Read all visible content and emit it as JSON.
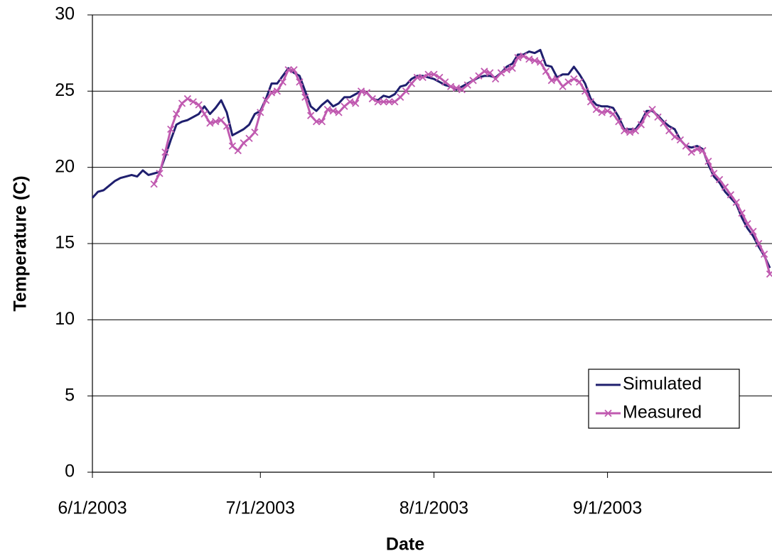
{
  "chart_data": {
    "type": "line",
    "x_label": "Date",
    "y_label": "Temperature (C)",
    "x": [
      "6/1/2003",
      "6/2/2003",
      "6/3/2003",
      "6/4/2003",
      "6/5/2003",
      "6/6/2003",
      "6/7/2003",
      "6/8/2003",
      "6/9/2003",
      "6/10/2003",
      "6/11/2003",
      "6/12/2003",
      "6/13/2003",
      "6/14/2003",
      "6/15/2003",
      "6/16/2003",
      "6/17/2003",
      "6/18/2003",
      "6/19/2003",
      "6/20/2003",
      "6/21/2003",
      "6/22/2003",
      "6/23/2003",
      "6/24/2003",
      "6/25/2003",
      "6/26/2003",
      "6/27/2003",
      "6/28/2003",
      "6/29/2003",
      "6/30/2003",
      "7/1/2003",
      "7/2/2003",
      "7/3/2003",
      "7/4/2003",
      "7/5/2003",
      "7/6/2003",
      "7/7/2003",
      "7/8/2003",
      "7/9/2003",
      "7/10/2003",
      "7/11/2003",
      "7/12/2003",
      "7/13/2003",
      "7/14/2003",
      "7/15/2003",
      "7/16/2003",
      "7/17/2003",
      "7/18/2003",
      "7/19/2003",
      "7/20/2003",
      "7/21/2003",
      "7/22/2003",
      "7/23/2003",
      "7/24/2003",
      "7/25/2003",
      "7/26/2003",
      "7/27/2003",
      "7/28/2003",
      "7/29/2003",
      "7/30/2003",
      "7/31/2003",
      "8/1/2003",
      "8/2/2003",
      "8/3/2003",
      "8/4/2003",
      "8/5/2003",
      "8/6/2003",
      "8/7/2003",
      "8/8/2003",
      "8/9/2003",
      "8/10/2003",
      "8/11/2003",
      "8/12/2003",
      "8/13/2003",
      "8/14/2003",
      "8/15/2003",
      "8/16/2003",
      "8/17/2003",
      "8/18/2003",
      "8/19/2003",
      "8/20/2003",
      "8/21/2003",
      "8/22/2003",
      "8/23/2003",
      "8/24/2003",
      "8/25/2003",
      "8/26/2003",
      "8/27/2003",
      "8/28/2003",
      "8/29/2003",
      "8/30/2003",
      "8/31/2003",
      "9/1/2003",
      "9/2/2003",
      "9/3/2003",
      "9/4/2003",
      "9/5/2003",
      "9/6/2003",
      "9/7/2003",
      "9/8/2003",
      "9/9/2003",
      "9/10/2003",
      "9/11/2003",
      "9/12/2003",
      "9/13/2003",
      "9/14/2003",
      "9/15/2003",
      "9/16/2003",
      "9/17/2003",
      "9/18/2003",
      "9/19/2003",
      "9/20/2003",
      "9/21/2003",
      "9/22/2003",
      "9/23/2003",
      "9/24/2003",
      "9/25/2003",
      "9/26/2003",
      "9/27/2003",
      "9/28/2003",
      "9/29/2003",
      "9/30/2003"
    ],
    "series": [
      {
        "name": "Simulated",
        "color": "#1f1f6e",
        "marker": "none",
        "values": [
          18.0,
          18.4,
          18.5,
          18.8,
          19.1,
          19.3,
          19.4,
          19.5,
          19.4,
          19.8,
          19.5,
          19.6,
          19.7,
          20.7,
          21.8,
          22.8,
          23.0,
          23.1,
          23.3,
          23.5,
          24.0,
          23.5,
          23.9,
          24.4,
          23.6,
          22.1,
          22.3,
          22.5,
          22.8,
          23.5,
          23.7,
          24.5,
          25.5,
          25.5,
          26.0,
          26.5,
          26.2,
          26.0,
          25.0,
          24.0,
          23.7,
          24.1,
          24.4,
          24.0,
          24.2,
          24.6,
          24.6,
          24.8,
          25.0,
          24.9,
          24.5,
          24.4,
          24.7,
          24.6,
          24.8,
          25.3,
          25.4,
          25.8,
          26.0,
          26.0,
          25.9,
          25.8,
          25.6,
          25.4,
          25.3,
          25.1,
          25.3,
          25.5,
          25.7,
          25.9,
          26.0,
          26.0,
          25.9,
          26.2,
          26.6,
          26.8,
          27.4,
          27.4,
          27.6,
          27.5,
          27.7,
          26.7,
          26.6,
          25.9,
          26.1,
          26.1,
          26.6,
          26.1,
          25.5,
          24.5,
          24.1,
          24.0,
          24.0,
          23.9,
          23.3,
          22.5,
          22.5,
          22.5,
          23.0,
          23.7,
          23.7,
          23.4,
          23.0,
          22.7,
          22.5,
          21.8,
          21.4,
          21.3,
          21.4,
          21.2,
          20.2,
          19.4,
          19.0,
          18.4,
          18.0,
          17.6,
          16.7,
          16.0,
          15.5,
          14.8,
          14.2,
          13.4
        ]
      },
      {
        "name": "Measured",
        "color": "#c05ab0",
        "marker": "x",
        "values": [
          null,
          null,
          null,
          null,
          null,
          null,
          null,
          null,
          null,
          null,
          null,
          18.9,
          19.6,
          21.0,
          22.5,
          23.5,
          24.2,
          24.5,
          24.3,
          24.1,
          23.5,
          22.9,
          23.0,
          23.1,
          22.7,
          21.4,
          21.1,
          21.6,
          21.9,
          22.3,
          23.6,
          24.4,
          24.9,
          25.0,
          25.6,
          26.4,
          26.4,
          25.6,
          24.6,
          23.4,
          23.0,
          23.0,
          23.8,
          23.7,
          23.6,
          24.0,
          24.3,
          24.2,
          25.0,
          24.9,
          24.5,
          24.3,
          24.3,
          24.3,
          24.3,
          24.6,
          25.0,
          25.5,
          25.9,
          25.9,
          26.1,
          26.1,
          25.9,
          25.6,
          25.3,
          25.2,
          25.1,
          25.4,
          25.7,
          26.0,
          26.3,
          26.2,
          25.8,
          26.2,
          26.4,
          26.5,
          27.2,
          27.3,
          27.1,
          27.0,
          26.9,
          26.3,
          25.7,
          25.8,
          25.3,
          25.6,
          25.8,
          25.6,
          25.0,
          24.3,
          23.8,
          23.6,
          23.7,
          23.5,
          23.0,
          22.4,
          22.3,
          22.4,
          22.8,
          23.5,
          23.8,
          23.3,
          22.9,
          22.4,
          22.0,
          21.8,
          21.4,
          21.0,
          21.2,
          21.1,
          20.4,
          19.6,
          19.2,
          18.7,
          18.2,
          17.7,
          17.0,
          16.3,
          15.8,
          15.0,
          14.3,
          13.0
        ]
      }
    ],
    "xlim": [
      "6/1/2003",
      "9/30/2003"
    ],
    "xticks": [
      "6/1/2003",
      "7/1/2003",
      "8/1/2003",
      "9/1/2003"
    ],
    "ylim": [
      0,
      30
    ],
    "yticks": [
      0,
      5,
      10,
      15,
      20,
      25,
      30
    ],
    "grid": true,
    "legend": "lower right"
  }
}
